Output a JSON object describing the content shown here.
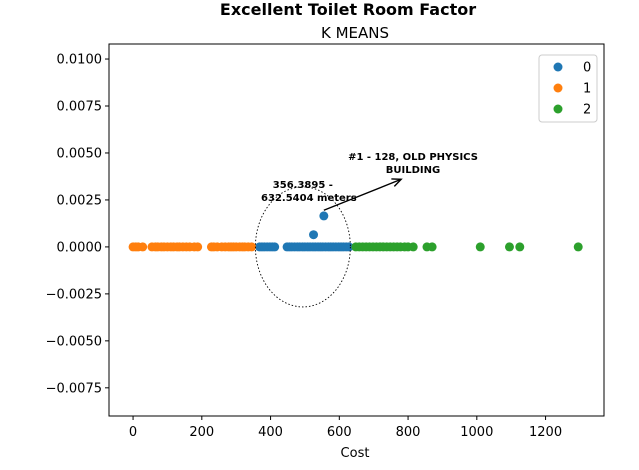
{
  "chart_data": {
    "type": "scatter",
    "title": "Excellent Toilet Room Factor",
    "subtitle": "K MEANS",
    "xlabel": "Cost",
    "ylabel": "",
    "xlim": [
      -70,
      1370
    ],
    "ylim": [
      -0.009,
      0.0108
    ],
    "xticks": [
      0,
      200,
      400,
      600,
      800,
      1000,
      1200
    ],
    "xtick_labels": [
      "0",
      "200",
      "400",
      "600",
      "800",
      "1000",
      "1200"
    ],
    "yticks": [
      0.01,
      0.0075,
      0.005,
      0.0025,
      0.0,
      -0.0025,
      -0.005,
      -0.0075
    ],
    "ytick_labels": [
      "0.0100",
      "0.0075",
      "0.0050",
      "0.0025",
      "0.0000",
      "−0.0025",
      "−0.0050",
      "−0.0075"
    ],
    "legend_position": "top-right",
    "grid": false,
    "series": [
      {
        "name": "0",
        "color": "#1f77b4",
        "x": [
          368,
          375,
          382,
          390,
          398,
          405,
          412,
          448,
          455,
          462,
          470,
          478,
          485,
          493,
          500,
          508,
          515,
          523,
          530,
          538,
          545,
          552,
          560,
          568,
          575,
          582,
          590,
          598,
          605,
          612,
          620,
          628,
          525,
          555
        ],
        "y": [
          0,
          0,
          0,
          0,
          0,
          0,
          0,
          0,
          0,
          0,
          0,
          0,
          0,
          0,
          0,
          0,
          0,
          0,
          0,
          0,
          0,
          0,
          0,
          0,
          0,
          0,
          0,
          0,
          0,
          0,
          0,
          0,
          0.00065,
          0.00165
        ]
      },
      {
        "name": "1",
        "color": "#ff7f0e",
        "x": [
          0,
          8,
          15,
          28,
          55,
          65,
          72,
          82,
          90,
          100,
          110,
          118,
          128,
          135,
          145,
          155,
          165,
          178,
          188,
          228,
          235,
          245,
          258,
          268,
          278,
          285,
          292,
          300,
          310,
          318,
          325,
          335,
          345
        ],
        "y": [
          0,
          0,
          0,
          0,
          0,
          0,
          0,
          0,
          0,
          0,
          0,
          0,
          0,
          0,
          0,
          0,
          0,
          0,
          0,
          0,
          0,
          0,
          0,
          0,
          0,
          0,
          0,
          0,
          0,
          0,
          0,
          0,
          0
        ]
      },
      {
        "name": "2",
        "color": "#2ca02c",
        "x": [
          648,
          658,
          668,
          678,
          688,
          698,
          708,
          718,
          728,
          738,
          748,
          758,
          768,
          778,
          790,
          800,
          815,
          855,
          870,
          1010,
          1095,
          1125,
          1295
        ],
        "y": [
          0,
          0,
          0,
          0,
          0,
          0,
          0,
          0,
          0,
          0,
          0,
          0,
          0,
          0,
          0,
          0,
          0,
          0,
          0,
          0,
          0,
          0,
          0
        ]
      }
    ],
    "annotations": {
      "circle_label_line1": "356.3895 -",
      "circle_label_line2": "632.5404 meters",
      "arrow_label_line1": "#1 - 128, OLD PHYSICS",
      "arrow_label_line2": "BUILDING",
      "circle_center": [
        494,
        0.0
      ],
      "circle_range": [
        356.3895,
        632.5404
      ],
      "arrow_tail": [
        555,
        0.00195
      ],
      "arrow_head": [
        780,
        0.0036
      ]
    }
  }
}
